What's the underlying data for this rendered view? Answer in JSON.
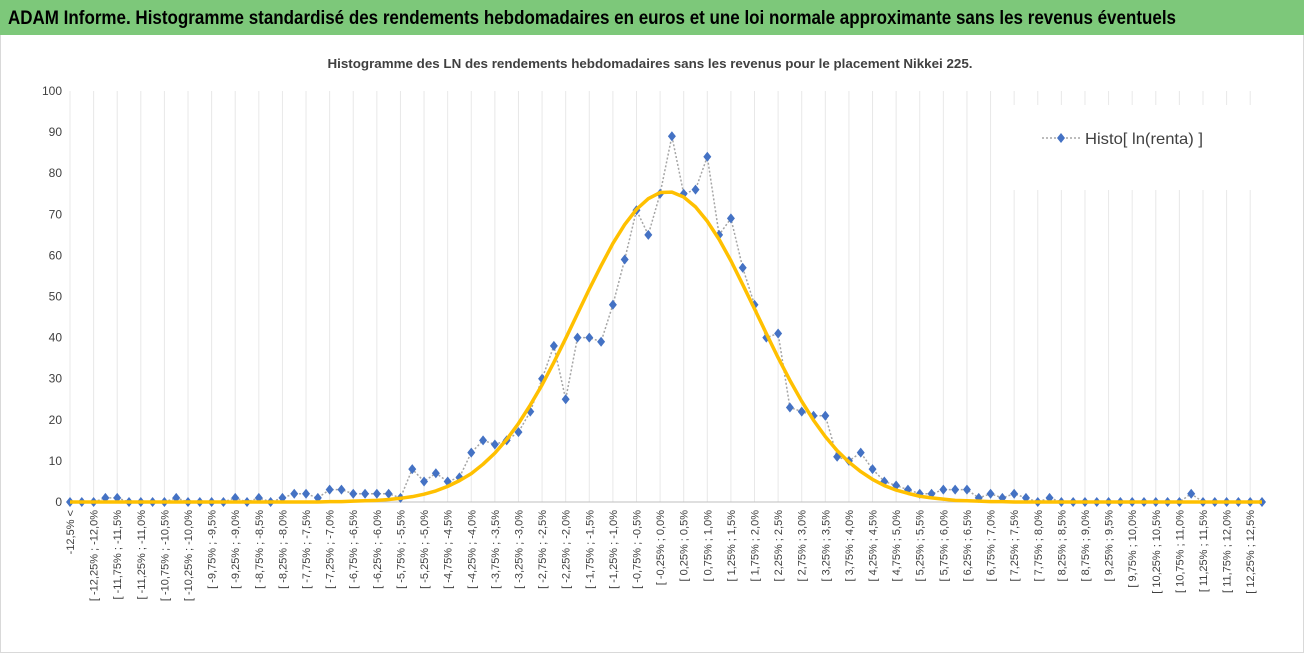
{
  "chart_data": {
    "type": "line",
    "title": "ADAM Informe. Histogramme standardisé des rendements hebdomadaires en euros et une loi normale approximante sans les revenus éventuels",
    "subtitle": "Histogramme  des LN des rendements  hebdomadaires  sans les revenus pour le placement Nikkei 225.",
    "categories": [
      "-12,5% <",
      null,
      "[ -12,25% ; -12,0%",
      null,
      "[ -11,75% ; -11,5%",
      null,
      "[ -11,25% ; -11,0%",
      null,
      "[ -10,75% ; -10,5%",
      null,
      "[ -10,25% ; -10,0%",
      null,
      "[ -9,75% ; -9,5%",
      null,
      "[ -9,25% ; -9,0%",
      null,
      "[ -8,75% ; -8,5%",
      null,
      "[ -8,25% ; -8,0%",
      null,
      "[ -7,75% ; -7,5%",
      null,
      "[ -7,25% ; -7,0%",
      null,
      "[ -6,75% ; -6,5%",
      null,
      "[ -6,25% ; -6,0%",
      null,
      "[ -5,75% ; -5,5%",
      null,
      "[ -5,25% ; -5,0%",
      null,
      "[ -4,75% ; -4,5%",
      null,
      "[ -4,25% ; -4,0%",
      null,
      "[ -3,75% ; -3,5%",
      null,
      "[ -3,25% ; -3,0%",
      null,
      "[ -2,75% ; -2,5%",
      null,
      "[ -2,25% ; -2,0%",
      null,
      "[ -1,75% ; -1,5%",
      null,
      "[ -1,25% ; -1,0%",
      null,
      "[ -0,75% ; -0,5%",
      null,
      "[ -0,25% ; 0,0%",
      null,
      "[ 0,25% ; 0,5%",
      null,
      "[ 0,75% ; 1,0%",
      null,
      "[ 1,25% ; 1,5%",
      null,
      "[ 1,75% ; 2,0%",
      null,
      "[ 2,25% ; 2,5%",
      null,
      "[ 2,75% ; 3,0%",
      null,
      "[ 3,25% ; 3,5%",
      null,
      "[ 3,75% ; 4,0%",
      null,
      "[ 4,25% ; 4,5%",
      null,
      "[ 4,75% ; 5,0%",
      null,
      "[ 5,25% ; 5,5%",
      null,
      "[ 5,75% ; 6,0%",
      null,
      "[ 6,25% ; 6,5%",
      null,
      "[ 6,75% ; 7,0%",
      null,
      "[ 7,25% ; 7,5%",
      null,
      "[ 7,75% ; 8,0%",
      null,
      "[ 8,25% ; 8,5%",
      null,
      "[ 8,75% ; 9,0%",
      null,
      "[ 9,25% ; 9,5%",
      null,
      "[ 9,75% ; 10,0%",
      null,
      "[ 10,25% ; 10,5%",
      null,
      "[ 10,75% ; 11,0%",
      null,
      "[ 11,25% ; 11,5%",
      null,
      "[ 11,75% ; 12,0%",
      null,
      "[ 12,25% ; 12,5%",
      null
    ],
    "series": [
      {
        "name": "Histo[ ln(renta) ]",
        "color": "#4472c4",
        "line_color": "#a5a5a5",
        "marker": "diamond",
        "values": [
          0,
          0,
          0,
          1,
          1,
          0,
          0,
          0,
          0,
          1,
          0,
          0,
          0,
          0,
          1,
          0,
          1,
          0,
          1,
          2,
          2,
          1,
          3,
          3,
          2,
          2,
          2,
          2,
          1,
          8,
          5,
          7,
          5,
          6,
          12,
          15,
          14,
          15,
          17,
          22,
          30,
          38,
          25,
          40,
          40,
          39,
          48,
          59,
          71,
          65,
          75,
          89,
          75,
          76,
          84,
          65,
          69,
          57,
          48,
          40,
          41,
          23,
          22,
          21,
          21,
          11,
          10,
          12,
          8,
          5,
          4,
          3,
          2,
          2,
          3,
          3,
          3,
          1,
          2,
          1,
          2,
          1,
          0,
          1,
          0,
          0,
          0,
          0,
          0,
          0,
          0,
          0,
          0,
          0,
          0,
          2,
          0,
          0,
          0,
          0,
          0,
          0
        ]
      },
      {
        "color": "#ffc000",
        "marker": "none",
        "values": [
          0,
          0,
          0,
          0,
          0,
          0,
          0,
          0,
          0,
          0,
          0,
          0,
          0,
          0,
          0,
          0,
          0,
          0,
          0,
          0,
          0,
          0,
          0.1,
          0.1,
          0.2,
          0.3,
          0.4,
          0.6,
          0.9,
          1.3,
          1.9,
          2.7,
          3.8,
          5.2,
          6.9,
          9.2,
          11.9,
          15.2,
          19.1,
          23.6,
          28.5,
          34.0,
          39.8,
          45.8,
          51.8,
          57.5,
          62.9,
          67.5,
          71.2,
          73.8,
          75.3,
          75.4,
          74.2,
          71.8,
          68.3,
          63.9,
          58.7,
          52.9,
          47.0,
          41.0,
          35.1,
          29.6,
          24.5,
          19.9,
          15.9,
          12.5,
          9.7,
          7.4,
          5.5,
          4.0,
          2.9,
          2.1,
          1.4,
          1.0,
          0.7,
          0.4,
          0.3,
          0.2,
          0.1,
          0.1,
          0,
          0,
          0,
          0,
          0,
          0,
          0,
          0,
          0,
          0,
          0,
          0,
          0,
          0,
          0,
          0,
          0,
          0,
          0,
          0,
          0,
          0
        ]
      }
    ],
    "ylim": [
      0,
      100
    ],
    "yticks": [
      0,
      10,
      20,
      30,
      40,
      50,
      60,
      70,
      80,
      90,
      100
    ],
    "grid": {
      "x": true,
      "y": false
    },
    "legend": "upper right",
    "header_color": "#7dc87a"
  }
}
